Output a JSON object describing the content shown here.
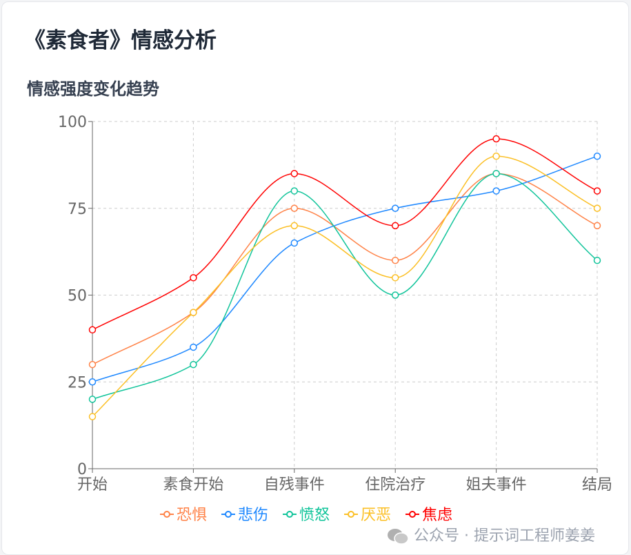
{
  "title": "《素食者》情感分析",
  "subtitle": "情感强度变化趋势",
  "watermark": "公众号 · 提示词工程师姜姜",
  "chart_data": {
    "type": "line",
    "title": "情感强度变化趋势",
    "categories": [
      "开始",
      "素食开始",
      "自残事件",
      "住院治疗",
      "姐夫事件",
      "结局"
    ],
    "ylim": [
      0,
      100
    ],
    "yticks": [
      0,
      25,
      50,
      75,
      100
    ],
    "grid": true,
    "legend_position": "bottom",
    "series": [
      {
        "name": "恐惧",
        "color": "#ff8247",
        "values": [
          30,
          45,
          75,
          60,
          85,
          70
        ]
      },
      {
        "name": "悲伤",
        "color": "#1e88ff",
        "values": [
          25,
          35,
          65,
          75,
          80,
          90
        ]
      },
      {
        "name": "愤怒",
        "color": "#10c49a",
        "values": [
          20,
          30,
          80,
          50,
          85,
          60
        ]
      },
      {
        "name": "厌恶",
        "color": "#fbbf24",
        "values": [
          15,
          45,
          70,
          55,
          90,
          75
        ]
      },
      {
        "name": "焦虑",
        "color": "#ff0000",
        "values": [
          40,
          55,
          85,
          70,
          95,
          80
        ]
      }
    ]
  }
}
